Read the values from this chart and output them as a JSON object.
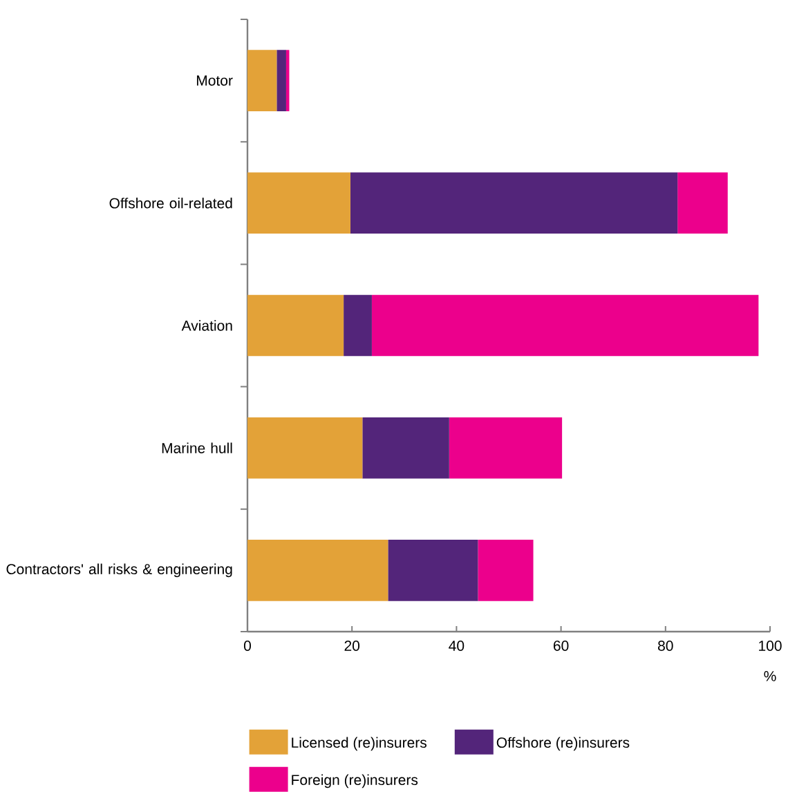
{
  "chart_data": {
    "type": "bar",
    "orientation": "horizontal",
    "stacked": true,
    "xlabel": "%",
    "categories": [
      "Motor",
      "Offshore oil-related",
      "Aviation",
      "Marine hull",
      "Contractors' all risks & engineering"
    ],
    "series": [
      {
        "name": "Licensed (re)insurers",
        "color": "#e3a238",
        "values": [
          5.6,
          19.7,
          18.4,
          22.0,
          26.9
        ]
      },
      {
        "name": "Offshore (re)insurers",
        "color": "#53257a",
        "values": [
          1.8,
          62.6,
          5.4,
          16.6,
          17.2
        ]
      },
      {
        "name": "Foreign (re)insurers",
        "color": "#ec008c",
        "values": [
          0.6,
          9.6,
          74.0,
          21.6,
          10.6
        ]
      }
    ],
    "xlim": [
      0,
      100
    ],
    "xticks": [
      0,
      20,
      40,
      60,
      80,
      100
    ],
    "grid": false,
    "legend": "bottom"
  }
}
